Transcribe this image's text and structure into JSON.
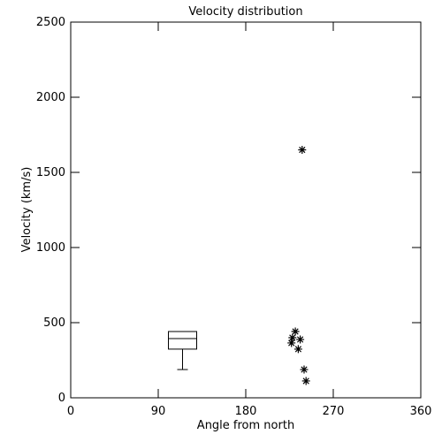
{
  "chart_data": {
    "type": "scatter",
    "title": "Velocity distribution",
    "x_label": "Angle from north",
    "y_label": "Velocity (km/s)",
    "xlim": [
      0,
      360
    ],
    "xticks": [
      0,
      90,
      180,
      270,
      360
    ],
    "ylim": [
      0,
      2500
    ],
    "yticks": [
      0,
      500,
      1000,
      1500,
      2000,
      2500
    ],
    "color": "#000000",
    "x": [
      238,
      231,
      228,
      236,
      227,
      234,
      240,
      242
    ],
    "values": [
      1650,
      441,
      400,
      388,
      365,
      324,
      188,
      112
    ],
    "box": {
      "x": 115,
      "whisker_low": 188,
      "q1": 324,
      "median": 394,
      "q3": 441
    }
  }
}
